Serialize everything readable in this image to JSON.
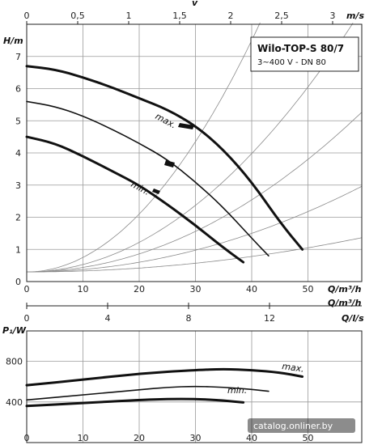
{
  "chart_data": [
    {
      "name": "head-chart",
      "type": "line",
      "title": "Wilo-TOP-S 80/7",
      "subtitle": "3~400 V - DN 80",
      "xlabel": "Q/m³/h",
      "ylabel": "H/m",
      "top_axis_label": "v",
      "top_axis_unit": "m/s",
      "xlim": [
        0,
        55
      ],
      "ylim": [
        0,
        8
      ],
      "x_ticks": [
        0,
        10,
        20,
        30,
        40,
        50
      ],
      "y_ticks": [
        0,
        1,
        2,
        3,
        4,
        5,
        6,
        7
      ],
      "top_ticks": [
        "0",
        "0,5",
        "1",
        "1,5",
        "2",
        "2,5",
        "3"
      ],
      "grid": true,
      "series": [
        {
          "name": "max.",
          "width": "thick",
          "x": [
            0,
            5,
            10,
            15,
            20,
            25,
            30,
            35,
            40,
            45,
            49
          ],
          "y": [
            6.7,
            6.6,
            6.35,
            6.05,
            5.7,
            5.35,
            4.85,
            4.1,
            3.1,
            1.85,
            1.0
          ]
        },
        {
          "name": "",
          "width": "thin",
          "x": [
            0,
            5,
            10,
            15,
            20,
            25,
            30,
            35,
            40,
            43
          ],
          "y": [
            5.6,
            5.45,
            5.15,
            4.75,
            4.3,
            3.8,
            3.1,
            2.3,
            1.35,
            0.8
          ]
        },
        {
          "name": "min.",
          "width": "thick",
          "x": [
            0,
            5,
            10,
            15,
            20,
            25,
            30,
            35,
            38.5
          ],
          "y": [
            4.5,
            4.3,
            3.9,
            3.45,
            3.0,
            2.4,
            1.75,
            1.05,
            0.6
          ]
        }
      ]
    },
    {
      "name": "power-chart",
      "type": "line",
      "xlabel": "Q/m³/h",
      "ylabel": "P₁/W",
      "top_axis_unit": "Q/l/s",
      "xlim": [
        0,
        55
      ],
      "ylim": [
        0,
        1100
      ],
      "x_ticks": [
        0,
        10,
        20,
        30,
        40,
        50
      ],
      "y_ticks": [
        400,
        800
      ],
      "top_ticks": [
        "0",
        "4",
        "8",
        "12"
      ],
      "grid": true,
      "series": [
        {
          "name": "max.",
          "width": "thick",
          "x": [
            0,
            10,
            20,
            30,
            35,
            40,
            45,
            49
          ],
          "y": [
            565,
            620,
            680,
            715,
            725,
            715,
            690,
            650
          ]
        },
        {
          "name": "",
          "width": "thin",
          "x": [
            0,
            10,
            20,
            25,
            30,
            35,
            40,
            43
          ],
          "y": [
            420,
            470,
            520,
            545,
            555,
            545,
            525,
            505
          ]
        },
        {
          "name": "min.",
          "width": "thick",
          "x": [
            0,
            10,
            20,
            25,
            30,
            35,
            38.5
          ],
          "y": [
            360,
            390,
            420,
            430,
            430,
            415,
            395
          ]
        }
      ]
    }
  ],
  "watermark": "catalog.onliner.by"
}
